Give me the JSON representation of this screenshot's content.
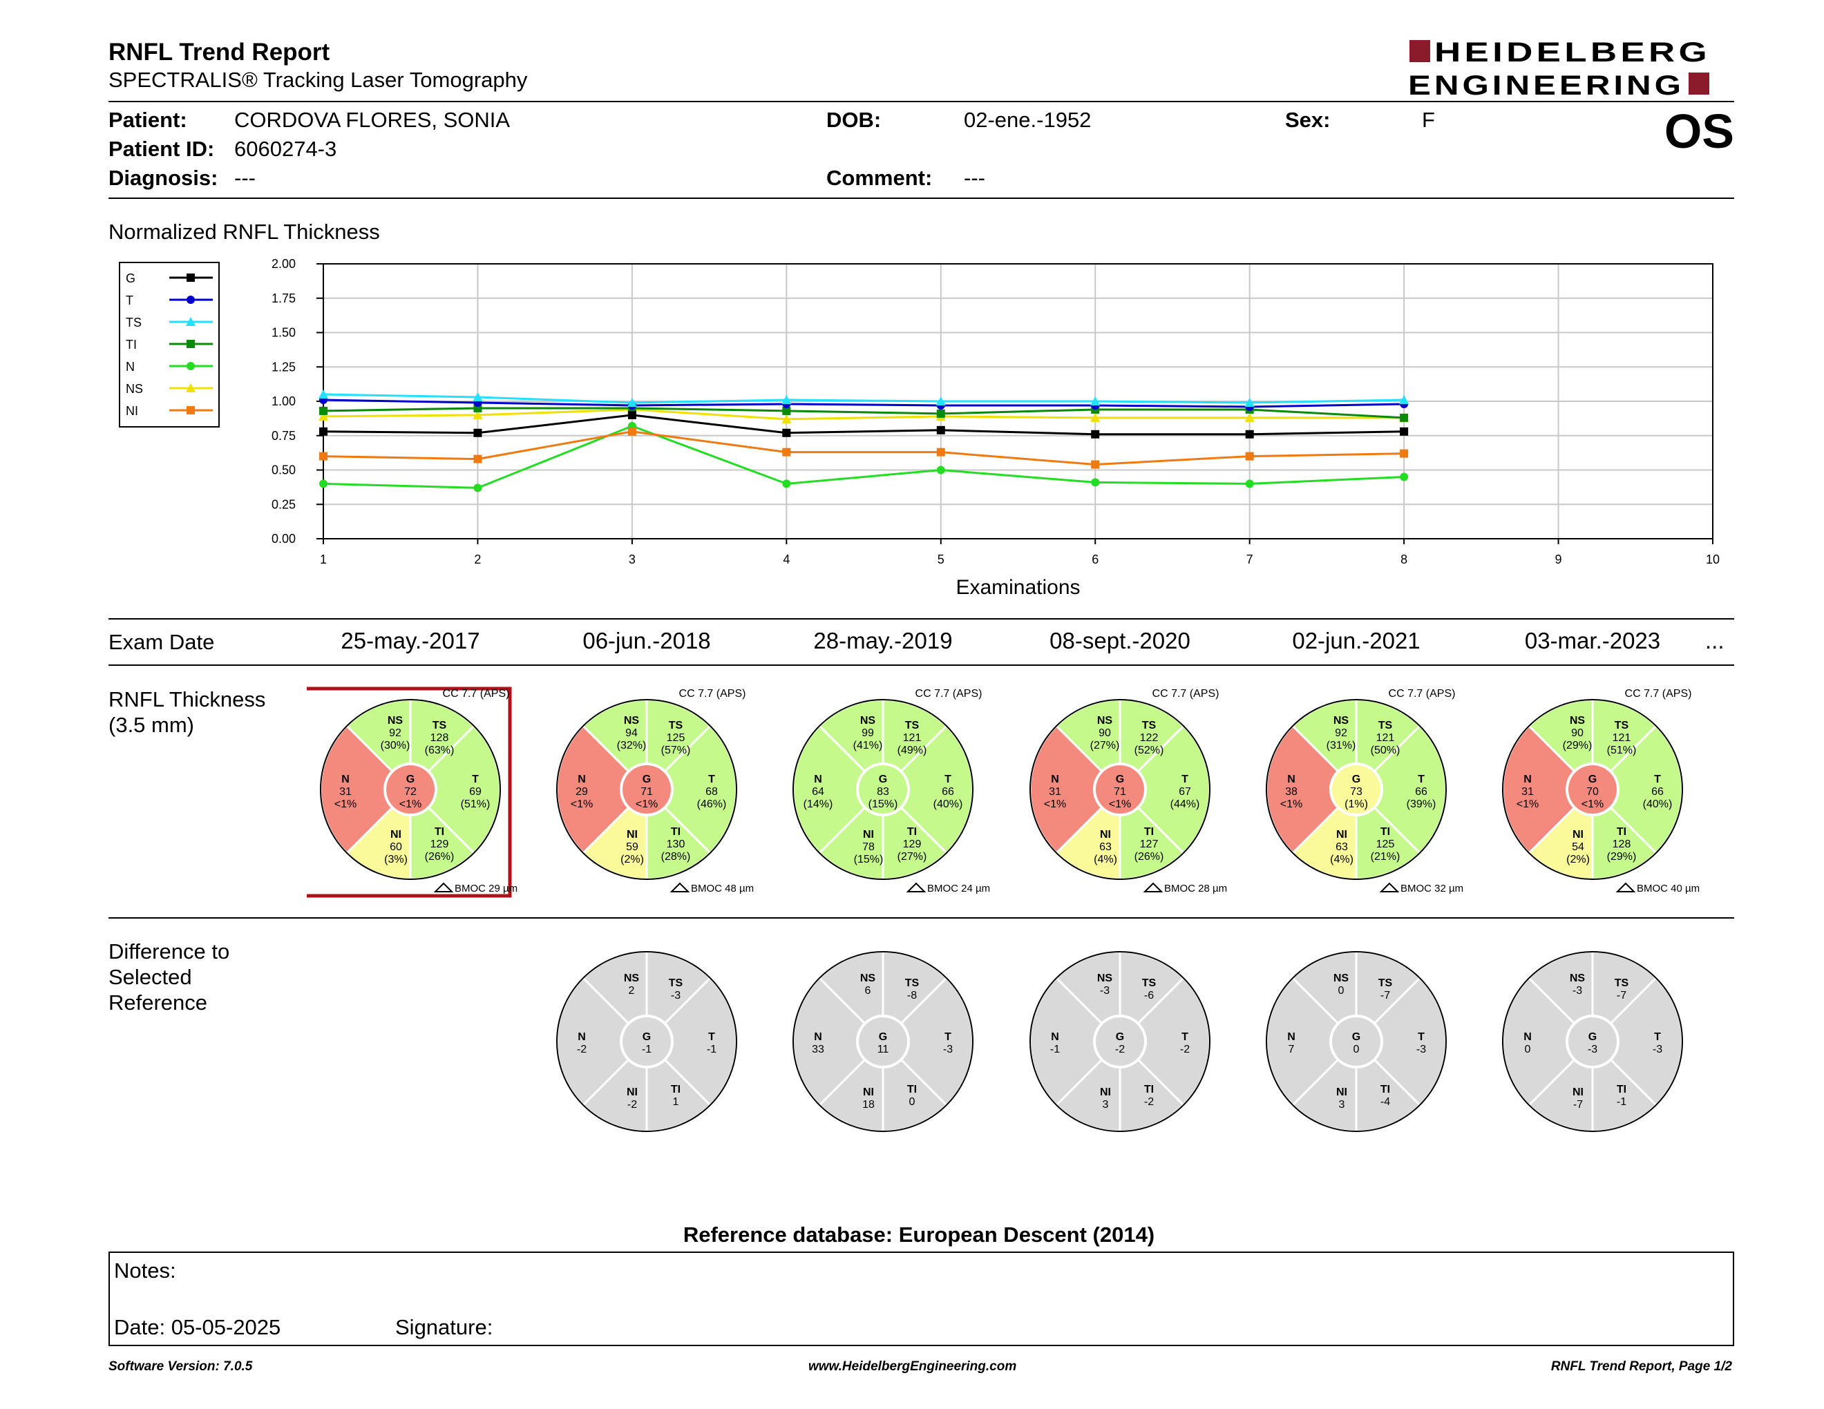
{
  "header": {
    "title": "RNFL Trend Report",
    "subtitle": "SPECTRALIS® Tracking Laser Tomography",
    "logo_line1": "HEIDELBERG",
    "logo_line2": "ENGINEERING",
    "logo_color": "#8b1a2b"
  },
  "patient": {
    "patient_label": "Patient:",
    "patient_value": "CORDOVA FLORES, SONIA",
    "id_label": "Patient ID:",
    "id_value": "6060274-3",
    "diagnosis_label": "Diagnosis:",
    "diagnosis_value": "---",
    "dob_label": "DOB:",
    "dob_value": "02-ene.-1952",
    "comment_label": "Comment:",
    "comment_value": "---",
    "sex_label": "Sex:",
    "sex_value": "F",
    "eye": "OS"
  },
  "trend": {
    "section_title": "Normalized RNFL Thickness",
    "legend": [
      "G",
      "T",
      "TS",
      "TI",
      "N",
      "NS",
      "NI"
    ]
  },
  "chart_data": {
    "type": "line",
    "xlabel": "Examinations",
    "ylabel": "",
    "xlim": [
      1,
      10
    ],
    "ylim": [
      0,
      2
    ],
    "x_ticks": [
      "1",
      "2",
      "3",
      "4",
      "5",
      "6",
      "7",
      "8",
      "9",
      "10"
    ],
    "y_ticks": [
      "2.00",
      "1.75",
      "1.50",
      "1.25",
      "1.00",
      "0.75",
      "0.50",
      "0.25",
      "0.00"
    ],
    "grid": true,
    "legend_position": "left",
    "x": [
      1,
      2,
      3,
      4,
      5,
      6,
      7,
      8
    ],
    "series": [
      {
        "name": "G",
        "color": "#000000",
        "marker": "square",
        "values": [
          0.78,
          0.77,
          0.9,
          0.77,
          0.79,
          0.76,
          0.76,
          0.78
        ]
      },
      {
        "name": "T",
        "color": "#0000cc",
        "marker": "circle",
        "values": [
          1.01,
          0.99,
          0.97,
          0.98,
          0.97,
          0.97,
          0.96,
          0.98
        ]
      },
      {
        "name": "TS",
        "color": "#22e0ff",
        "marker": "triangle",
        "values": [
          1.05,
          1.03,
          0.99,
          1.01,
          1.0,
          1.0,
          0.99,
          1.01
        ]
      },
      {
        "name": "TI",
        "color": "#0a8a0a",
        "marker": "square",
        "values": [
          0.93,
          0.95,
          0.95,
          0.93,
          0.91,
          0.94,
          0.94,
          0.88
        ]
      },
      {
        "name": "N",
        "color": "#22dd22",
        "marker": "circle",
        "values": [
          0.4,
          0.37,
          0.82,
          0.4,
          0.5,
          0.41,
          0.4,
          0.45
        ]
      },
      {
        "name": "NS",
        "color": "#f0e000",
        "marker": "triangle",
        "values": [
          0.89,
          0.9,
          0.94,
          0.87,
          0.89,
          0.88,
          0.88,
          0.88
        ]
      },
      {
        "name": "NI",
        "color": "#f07a10",
        "marker": "square",
        "values": [
          0.6,
          0.58,
          0.78,
          0.63,
          0.63,
          0.54,
          0.6,
          0.62
        ]
      }
    ]
  },
  "exams": {
    "label": "Exam Date",
    "more": "...",
    "dates": [
      "25-may.-2017",
      "06-jun.-2018",
      "28-may.-2019",
      "08-sept.-2020",
      "02-jun.-2021",
      "03-mar.-2023"
    ]
  },
  "thickness": {
    "title_line1": "RNFL Thickness",
    "title_line2": "(3.5 mm)",
    "colors": {
      "red": "#f48a7e",
      "yellow": "#fafa9a",
      "green": "#c6f98c",
      "gray": "#d9d9d9"
    },
    "discs": [
      {
        "cc": "CC 7.7 (APS)",
        "bmoc": "BMOC 29 µm",
        "selected": true,
        "G": {
          "v": "72",
          "p": "<1%",
          "c": "red"
        },
        "T": {
          "v": "69",
          "p": "(51%)",
          "c": "green"
        },
        "TS": {
          "v": "128",
          "p": "(63%)",
          "c": "green"
        },
        "TI": {
          "v": "129",
          "p": "(26%)",
          "c": "green"
        },
        "N": {
          "v": "31",
          "p": "<1%",
          "c": "red"
        },
        "NS": {
          "v": "92",
          "p": "(30%)",
          "c": "green"
        },
        "NI": {
          "v": "60",
          "p": "(3%)",
          "c": "yellow"
        }
      },
      {
        "cc": "CC 7.7 (APS)",
        "bmoc": "BMOC 48 µm",
        "selected": false,
        "G": {
          "v": "71",
          "p": "<1%",
          "c": "red"
        },
        "T": {
          "v": "68",
          "p": "(46%)",
          "c": "green"
        },
        "TS": {
          "v": "125",
          "p": "(57%)",
          "c": "green"
        },
        "TI": {
          "v": "130",
          "p": "(28%)",
          "c": "green"
        },
        "N": {
          "v": "29",
          "p": "<1%",
          "c": "red"
        },
        "NS": {
          "v": "94",
          "p": "(32%)",
          "c": "green"
        },
        "NI": {
          "v": "59",
          "p": "(2%)",
          "c": "yellow"
        }
      },
      {
        "cc": "CC 7.7 (APS)",
        "bmoc": "BMOC 24 µm",
        "selected": false,
        "G": {
          "v": "83",
          "p": "(15%)",
          "c": "green"
        },
        "T": {
          "v": "66",
          "p": "(40%)",
          "c": "green"
        },
        "TS": {
          "v": "121",
          "p": "(49%)",
          "c": "green"
        },
        "TI": {
          "v": "129",
          "p": "(27%)",
          "c": "green"
        },
        "N": {
          "v": "64",
          "p": "(14%)",
          "c": "green"
        },
        "NS": {
          "v": "99",
          "p": "(41%)",
          "c": "green"
        },
        "NI": {
          "v": "78",
          "p": "(15%)",
          "c": "green"
        }
      },
      {
        "cc": "CC 7.7 (APS)",
        "bmoc": "BMOC 28 µm",
        "selected": false,
        "G": {
          "v": "71",
          "p": "<1%",
          "c": "red"
        },
        "T": {
          "v": "67",
          "p": "(44%)",
          "c": "green"
        },
        "TS": {
          "v": "122",
          "p": "(52%)",
          "c": "green"
        },
        "TI": {
          "v": "127",
          "p": "(26%)",
          "c": "green"
        },
        "N": {
          "v": "31",
          "p": "<1%",
          "c": "red"
        },
        "NS": {
          "v": "90",
          "p": "(27%)",
          "c": "green"
        },
        "NI": {
          "v": "63",
          "p": "(4%)",
          "c": "yellow"
        }
      },
      {
        "cc": "CC 7.7 (APS)",
        "bmoc": "BMOC 32 µm",
        "selected": false,
        "G": {
          "v": "73",
          "p": "(1%)",
          "c": "yellow"
        },
        "T": {
          "v": "66",
          "p": "(39%)",
          "c": "green"
        },
        "TS": {
          "v": "121",
          "p": "(50%)",
          "c": "green"
        },
        "TI": {
          "v": "125",
          "p": "(21%)",
          "c": "green"
        },
        "N": {
          "v": "38",
          "p": "<1%",
          "c": "red"
        },
        "NS": {
          "v": "92",
          "p": "(31%)",
          "c": "green"
        },
        "NI": {
          "v": "63",
          "p": "(4%)",
          "c": "yellow"
        }
      },
      {
        "cc": "CC 7.7 (APS)",
        "bmoc": "BMOC 40 µm",
        "selected": false,
        "G": {
          "v": "70",
          "p": "<1%",
          "c": "red"
        },
        "T": {
          "v": "66",
          "p": "(40%)",
          "c": "green"
        },
        "TS": {
          "v": "121",
          "p": "(51%)",
          "c": "green"
        },
        "TI": {
          "v": "128",
          "p": "(29%)",
          "c": "green"
        },
        "N": {
          "v": "31",
          "p": "<1%",
          "c": "red"
        },
        "NS": {
          "v": "90",
          "p": "(29%)",
          "c": "green"
        },
        "NI": {
          "v": "54",
          "p": "(2%)",
          "c": "yellow"
        }
      }
    ]
  },
  "difference": {
    "title_line1": "Difference to",
    "title_line2": "Selected",
    "title_line3": "Reference",
    "discs": [
      {
        "G": "-1",
        "T": "-1",
        "TS": "-3",
        "TI": "1",
        "N": "-2",
        "NS": "2",
        "NI": "-2"
      },
      {
        "G": "11",
        "T": "-3",
        "TS": "-8",
        "TI": "0",
        "N": "33",
        "NS": "6",
        "NI": "18"
      },
      {
        "G": "-2",
        "T": "-2",
        "TS": "-6",
        "TI": "-2",
        "N": "-1",
        "NS": "-3",
        "NI": "3"
      },
      {
        "G": "0",
        "T": "-3",
        "TS": "-7",
        "TI": "-4",
        "N": "7",
        "NS": "0",
        "NI": "3"
      },
      {
        "G": "-3",
        "T": "-3",
        "TS": "-7",
        "TI": "-1",
        "N": "0",
        "NS": "-3",
        "NI": "-7"
      }
    ]
  },
  "reference_db": "Reference database: European Descent (2014)",
  "notes": {
    "label": "Notes:",
    "date": "Date: 05-05-2025",
    "signature": "Signature:"
  },
  "footer": {
    "software": "Software Version: 7.0.5",
    "website": "www.HeidelbergEngineering.com",
    "page": "RNFL Trend Report, Page 1/2"
  }
}
